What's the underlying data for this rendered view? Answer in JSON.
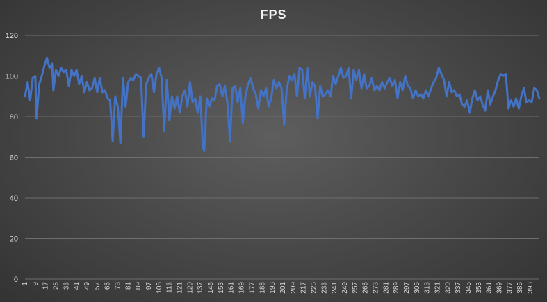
{
  "chart_data": {
    "type": "line",
    "title": "FPS",
    "xlabel": "",
    "ylabel": "",
    "ylim": [
      0,
      120
    ],
    "yticks": [
      0,
      20,
      40,
      60,
      80,
      100,
      120
    ],
    "x_range": [
      1,
      400
    ],
    "xticks": [
      1,
      9,
      17,
      25,
      33,
      41,
      49,
      57,
      65,
      73,
      81,
      89,
      97,
      105,
      113,
      121,
      129,
      137,
      145,
      153,
      161,
      169,
      177,
      185,
      193,
      201,
      209,
      217,
      225,
      233,
      241,
      249,
      257,
      265,
      273,
      281,
      289,
      297,
      305,
      313,
      321,
      329,
      337,
      345,
      353,
      361,
      369,
      377,
      385,
      393
    ],
    "grid": "horizontal",
    "legend": "none",
    "line_color": "#4472C4",
    "series": [
      {
        "name": "",
        "points": [
          [
            1,
            90
          ],
          [
            3,
            97
          ],
          [
            5,
            88
          ],
          [
            7,
            99
          ],
          [
            9,
            100
          ],
          [
            10,
            79
          ],
          [
            12,
            96
          ],
          [
            14,
            100
          ],
          [
            16,
            105
          ],
          [
            18,
            109
          ],
          [
            20,
            104
          ],
          [
            22,
            106
          ],
          [
            23,
            93
          ],
          [
            25,
            103
          ],
          [
            27,
            100
          ],
          [
            29,
            104
          ],
          [
            31,
            102
          ],
          [
            33,
            103
          ],
          [
            35,
            95
          ],
          [
            37,
            103
          ],
          [
            39,
            100
          ],
          [
            41,
            103
          ],
          [
            43,
            96
          ],
          [
            45,
            100
          ],
          [
            47,
            92
          ],
          [
            49,
            97
          ],
          [
            51,
            93
          ],
          [
            53,
            94
          ],
          [
            55,
            99
          ],
          [
            57,
            92
          ],
          [
            59,
            99
          ],
          [
            61,
            92
          ],
          [
            63,
            93
          ],
          [
            65,
            89
          ],
          [
            67,
            88
          ],
          [
            69,
            68
          ],
          [
            71,
            90
          ],
          [
            73,
            85
          ],
          [
            75,
            67
          ],
          [
            77,
            99
          ],
          [
            79,
            85
          ],
          [
            81,
            97
          ],
          [
            83,
            99
          ],
          [
            85,
            98
          ],
          [
            87,
            101
          ],
          [
            89,
            100
          ],
          [
            91,
            99
          ],
          [
            93,
            70
          ],
          [
            95,
            96
          ],
          [
            97,
            99
          ],
          [
            99,
            101
          ],
          [
            101,
            92
          ],
          [
            103,
            101
          ],
          [
            105,
            104
          ],
          [
            107,
            99
          ],
          [
            109,
            73
          ],
          [
            111,
            98
          ],
          [
            113,
            78
          ],
          [
            115,
            90
          ],
          [
            117,
            84
          ],
          [
            119,
            90
          ],
          [
            121,
            82
          ],
          [
            123,
            90
          ],
          [
            125,
            93
          ],
          [
            127,
            85
          ],
          [
            129,
            97
          ],
          [
            131,
            87
          ],
          [
            133,
            89
          ],
          [
            135,
            82
          ],
          [
            137,
            90
          ],
          [
            139,
            65
          ],
          [
            140,
            63
          ],
          [
            142,
            89
          ],
          [
            144,
            85
          ],
          [
            146,
            89
          ],
          [
            148,
            88
          ],
          [
            150,
            95
          ],
          [
            152,
            96
          ],
          [
            154,
            90
          ],
          [
            156,
            95
          ],
          [
            158,
            87
          ],
          [
            160,
            68
          ],
          [
            162,
            94
          ],
          [
            164,
            95
          ],
          [
            166,
            87
          ],
          [
            168,
            94
          ],
          [
            170,
            77
          ],
          [
            172,
            90
          ],
          [
            174,
            96
          ],
          [
            176,
            99
          ],
          [
            178,
            94
          ],
          [
            180,
            91
          ],
          [
            182,
            84
          ],
          [
            184,
            93
          ],
          [
            186,
            90
          ],
          [
            188,
            94
          ],
          [
            190,
            85
          ],
          [
            192,
            89
          ],
          [
            194,
            98
          ],
          [
            196,
            94
          ],
          [
            198,
            97
          ],
          [
            200,
            94
          ],
          [
            202,
            76
          ],
          [
            204,
            93
          ],
          [
            206,
            100
          ],
          [
            208,
            98
          ],
          [
            210,
            101
          ],
          [
            212,
            90
          ],
          [
            214,
            104
          ],
          [
            216,
            103
          ],
          [
            218,
            89
          ],
          [
            220,
            104
          ],
          [
            222,
            90
          ],
          [
            224,
            97
          ],
          [
            226,
            95
          ],
          [
            228,
            79
          ],
          [
            230,
            95
          ],
          [
            232,
            90
          ],
          [
            234,
            91
          ],
          [
            236,
            93
          ],
          [
            238,
            90
          ],
          [
            240,
            100
          ],
          [
            242,
            96
          ],
          [
            244,
            100
          ],
          [
            246,
            104
          ],
          [
            248,
            99
          ],
          [
            250,
            100
          ],
          [
            252,
            104
          ],
          [
            254,
            89
          ],
          [
            256,
            103
          ],
          [
            258,
            98
          ],
          [
            260,
            103
          ],
          [
            262,
            94
          ],
          [
            264,
            101
          ],
          [
            266,
            94
          ],
          [
            268,
            95
          ],
          [
            270,
            99
          ],
          [
            272,
            93
          ],
          [
            274,
            95
          ],
          [
            276,
            93
          ],
          [
            278,
            97
          ],
          [
            280,
            94
          ],
          [
            282,
            97
          ],
          [
            284,
            99
          ],
          [
            286,
            95
          ],
          [
            288,
            98
          ],
          [
            290,
            89
          ],
          [
            292,
            97
          ],
          [
            294,
            93
          ],
          [
            296,
            100
          ],
          [
            298,
            95
          ],
          [
            300,
            94
          ],
          [
            302,
            89
          ],
          [
            304,
            93
          ],
          [
            306,
            90
          ],
          [
            308,
            91
          ],
          [
            310,
            89
          ],
          [
            312,
            93
          ],
          [
            314,
            90
          ],
          [
            316,
            94
          ],
          [
            318,
            97
          ],
          [
            320,
            99
          ],
          [
            322,
            104
          ],
          [
            324,
            101
          ],
          [
            326,
            98
          ],
          [
            328,
            90
          ],
          [
            330,
            97
          ],
          [
            332,
            92
          ],
          [
            334,
            93
          ],
          [
            336,
            90
          ],
          [
            338,
            91
          ],
          [
            340,
            86
          ],
          [
            342,
            85
          ],
          [
            344,
            88
          ],
          [
            346,
            82
          ],
          [
            348,
            89
          ],
          [
            350,
            93
          ],
          [
            352,
            88
          ],
          [
            354,
            90
          ],
          [
            356,
            86
          ],
          [
            358,
            83
          ],
          [
            360,
            93
          ],
          [
            362,
            86
          ],
          [
            364,
            90
          ],
          [
            366,
            93
          ],
          [
            368,
            98
          ],
          [
            370,
            101
          ],
          [
            372,
            100
          ],
          [
            374,
            101
          ],
          [
            376,
            84
          ],
          [
            378,
            88
          ],
          [
            380,
            85
          ],
          [
            382,
            89
          ],
          [
            384,
            84
          ],
          [
            386,
            90
          ],
          [
            388,
            94
          ],
          [
            390,
            87
          ],
          [
            392,
            88
          ],
          [
            394,
            87
          ],
          [
            396,
            94
          ],
          [
            398,
            93
          ],
          [
            400,
            89
          ]
        ]
      }
    ]
  }
}
